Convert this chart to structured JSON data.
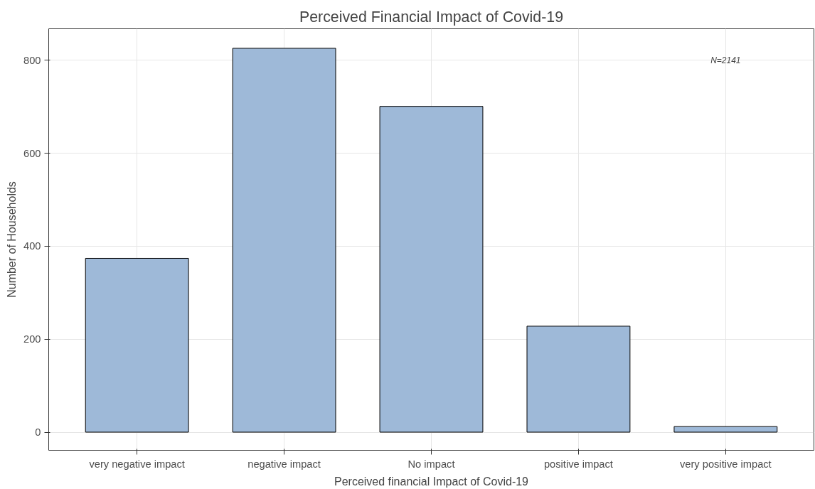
{
  "chart_data": {
    "type": "bar",
    "title": "Perceived Financial Impact of Covid-19",
    "xlabel": "Perceived financial Impact of Covid-19",
    "ylabel": "Number of Households",
    "categories": [
      "very negative impact",
      "negative impact",
      "No impact",
      "positive impact",
      "very positive impact"
    ],
    "values": [
      374,
      826,
      701,
      228,
      12
    ],
    "color": "#9eb9d8",
    "ylim": [
      -39,
      868
    ],
    "yticks": [
      0,
      200,
      400,
      600,
      800
    ],
    "grid": true,
    "annotations": [
      "N=2141"
    ]
  }
}
